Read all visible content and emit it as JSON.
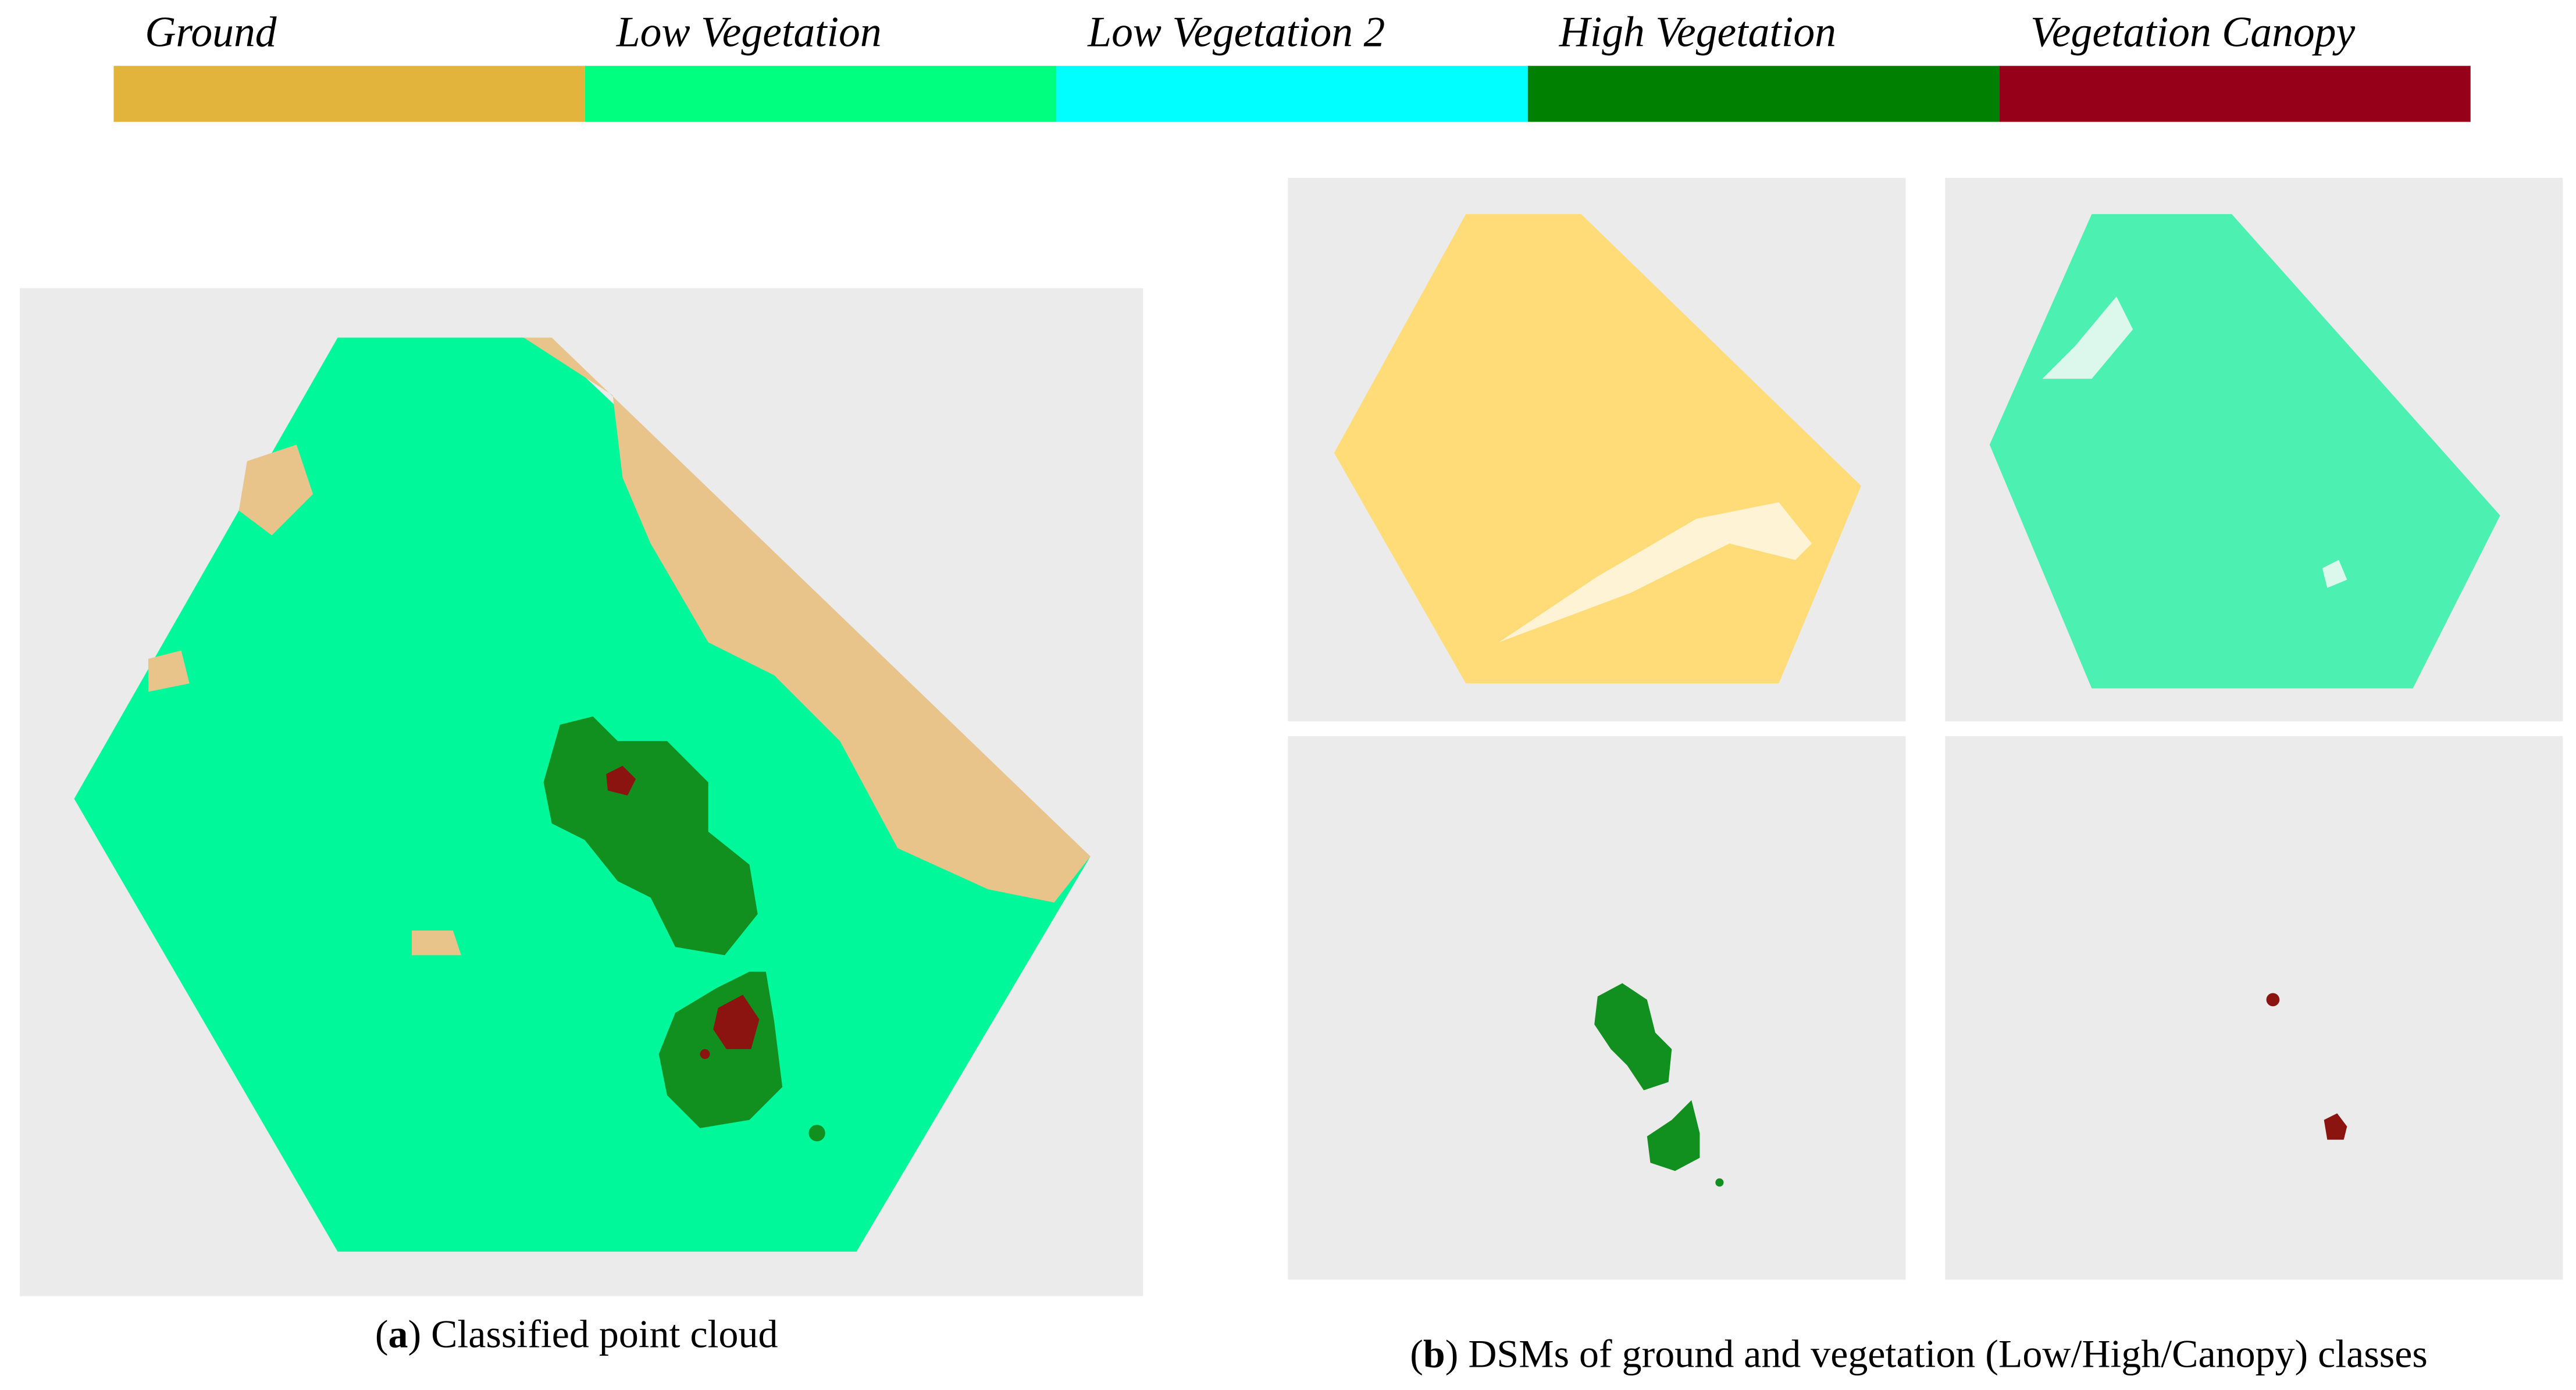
{
  "legend": [
    {
      "label": "Ground",
      "color": "#e2b43c"
    },
    {
      "label": "Low Vegetation",
      "color": "#00ff7f"
    },
    {
      "label": "Low Vegetation 2",
      "color": "#00ffff"
    },
    {
      "label": "High Vegetation",
      "color": "#008000"
    },
    {
      "label": "Vegetation Canopy",
      "color": "#960018"
    }
  ],
  "panels": [
    {
      "caption": {
        "open": "(",
        "label": "a",
        "text": ") Classified point cloud"
      }
    },
    {
      "caption": {
        "open": "(",
        "label": "b",
        "text": ") DSMs of ground and vegetation (Low/High/Canopy) classes"
      }
    }
  ]
}
